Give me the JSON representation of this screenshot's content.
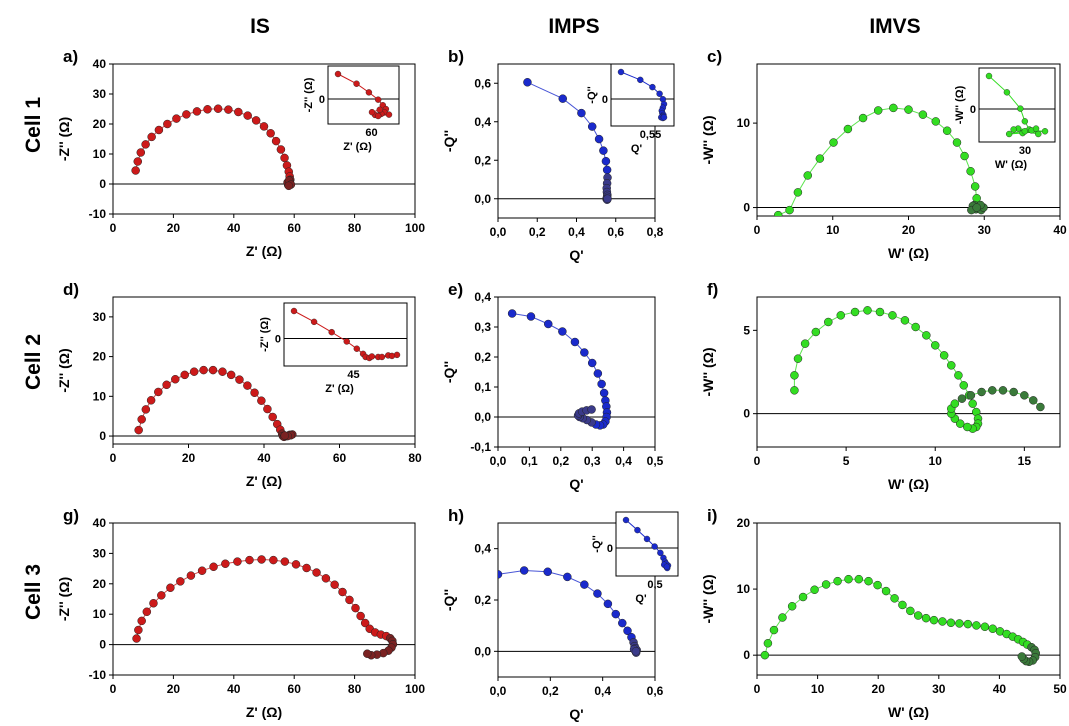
{
  "column_headers": [
    "IS",
    "IMPS",
    "IMVS"
  ],
  "row_headers": [
    "Cell 1",
    "Cell 2",
    "Cell 3"
  ],
  "colors": {
    "IS": "#cc1a1a",
    "IMPS": "#1a2acc",
    "IMVS": "#33dd22",
    "IS_dark": "#7a2222",
    "IMPS_dark": "#3a3a8a",
    "IMVS_dark": "#3a7a3a"
  },
  "chart_data": [
    {
      "id": "a",
      "label": "a)",
      "type": "scatter",
      "kind": "IS",
      "xlabel": "Z' (Ω)",
      "ylabel": "-Z'' (Ω)",
      "xlim": [
        0,
        100
      ],
      "ylim": [
        -10,
        40
      ],
      "xticks": [
        0,
        20,
        40,
        60,
        80,
        100
      ],
      "xtick_labels": [
        "0",
        "20",
        "40",
        "60",
        "80",
        "100"
      ],
      "yticks": [
        -10,
        0,
        10,
        20,
        30,
        40
      ],
      "ytick_labels": [
        "-10",
        "0",
        "10",
        "20",
        "30",
        "40"
      ],
      "x": [
        7.5,
        8.2,
        9.2,
        10.8,
        12.8,
        15.2,
        18,
        21,
        24.3,
        27.8,
        31.3,
        34.8,
        38.2,
        41.5,
        44.6,
        47.4,
        50,
        52.2,
        54,
        55.6,
        56.8,
        57.6,
        58.2,
        58.5,
        58.7,
        58.6,
        58.4,
        58.2,
        58,
        57.8,
        58.3,
        58.9,
        58.2
      ],
      "y": [
        4.5,
        7.5,
        10.5,
        13.2,
        15.7,
        18,
        20,
        21.8,
        23.2,
        24.2,
        24.9,
        25.1,
        24.8,
        24,
        22.8,
        21.2,
        19.2,
        16.9,
        14.3,
        11.5,
        8.7,
        6.2,
        4.1,
        2.5,
        1.4,
        0.5,
        0,
        -0.5,
        -0.3,
        0.5,
        1.2,
        -0.2,
        -0.6
      ],
      "inset": {
        "xlabel": "Z' (Ω)",
        "ylabel": "-Z'' (Ω)",
        "xtick_label": "60",
        "ytick_label": "0"
      }
    },
    {
      "id": "b",
      "label": "b)",
      "type": "scatter",
      "kind": "IMPS",
      "xlabel": "Q'",
      "ylabel": "-Q''",
      "xlim": [
        0,
        0.8
      ],
      "ylim": [
        -0.1,
        0.7
      ],
      "xticks": [
        0,
        0.2,
        0.4,
        0.6,
        0.8
      ],
      "xtick_labels": [
        "0,0",
        "0,2",
        "0,4",
        "0,6",
        "0,8"
      ],
      "yticks": [
        0,
        0.2,
        0.4,
        0.6
      ],
      "ytick_labels": [
        "0,0",
        "0,2",
        "0,4",
        "0,6"
      ],
      "x": [
        0.15,
        0.33,
        0.425,
        0.48,
        0.515,
        0.537,
        0.55,
        0.556,
        0.558,
        0.556,
        0.554,
        0.555,
        0.557,
        0.556,
        0.553,
        0.556,
        0.558
      ],
      "y": [
        0.605,
        0.52,
        0.445,
        0.375,
        0.31,
        0.25,
        0.195,
        0.15,
        0.11,
        0.08,
        0.055,
        0.035,
        0.02,
        0.01,
        0.0,
        -0.005,
        0.0
      ],
      "inset": {
        "xlabel": "Q'",
        "ylabel": "-Q''",
        "xtick_label": "0,55",
        "ytick_label": "0"
      }
    },
    {
      "id": "c",
      "label": "c)",
      "type": "scatter",
      "kind": "IMVS",
      "xlabel": "W' (Ω)",
      "ylabel": "-W'' (Ω)",
      "xlim": [
        0,
        40
      ],
      "ylim": [
        -1,
        17
      ],
      "xticks": [
        0,
        10,
        20,
        30,
        40
      ],
      "xtick_labels": [
        "0",
        "10",
        "20",
        "30",
        "40"
      ],
      "yticks": [
        0,
        10
      ],
      "ytick_labels": [
        "0",
        "10"
      ],
      "x": [
        2.8,
        4.3,
        5.4,
        6.7,
        8.3,
        10.1,
        12,
        14,
        16,
        18,
        20,
        21.9,
        23.6,
        25.1,
        26.4,
        27.4,
        28.2,
        28.8,
        29,
        29.2,
        28.9,
        28.7,
        29.3,
        29.6,
        28.5,
        29.9,
        28.3,
        29.5,
        29
      ],
      "y": [
        -0.9,
        -0.3,
        1.8,
        3.8,
        5.8,
        7.7,
        9.3,
        10.6,
        11.5,
        11.8,
        11.6,
        11,
        10.2,
        9.1,
        7.7,
        6.1,
        4.3,
        2.5,
        1.1,
        0.2,
        -0.2,
        0.3,
        0.1,
        -0.3,
        0.2,
        0,
        -0.3,
        0.3,
        0
      ],
      "inset": {
        "xlabel": "W' (Ω)",
        "ylabel": "-W'' (Ω)",
        "xtick_label": "30",
        "ytick_label": "0"
      }
    },
    {
      "id": "d",
      "label": "d)",
      "type": "scatter",
      "kind": "IS",
      "xlabel": "Z' (Ω)",
      "ylabel": "-Z'' (Ω)",
      "xlim": [
        0,
        80
      ],
      "ylim": [
        -2,
        35
      ],
      "xticks": [
        0,
        20,
        40,
        60,
        80
      ],
      "xtick_labels": [
        "0",
        "20",
        "40",
        "60",
        "80"
      ],
      "yticks": [
        0,
        10,
        20,
        30
      ],
      "ytick_labels": [
        "0",
        "10",
        "20",
        "30"
      ],
      "x": [
        6.8,
        7.6,
        8.7,
        10.1,
        12,
        14.2,
        16.5,
        19,
        21.5,
        24,
        26.5,
        29,
        31.3,
        33.5,
        35.6,
        37.5,
        39.3,
        40.9,
        42.3,
        43.5,
        44.3,
        44.8,
        45,
        45.3,
        46,
        46.8,
        47.5,
        47.1,
        46.3,
        45.5
      ],
      "y": [
        1.5,
        4.2,
        6.7,
        9,
        11.1,
        12.9,
        14.3,
        15.4,
        16.2,
        16.6,
        16.6,
        16.2,
        15.4,
        14.2,
        12.7,
        10.9,
        8.9,
        6.8,
        4.8,
        3,
        1.6,
        0.6,
        0,
        -0.2,
        0,
        0.3,
        0.4,
        0.2,
        0,
        0.1
      ],
      "inset": {
        "xlabel": "Z' (Ω)",
        "ylabel": "-Z'' (Ω)",
        "xtick_label": "45",
        "ytick_label": "0"
      }
    },
    {
      "id": "e",
      "label": "e)",
      "type": "scatter",
      "kind": "IMPS",
      "xlabel": "Q'",
      "ylabel": "-Q''",
      "xlim": [
        0,
        0.5
      ],
      "ylim": [
        -0.1,
        0.4
      ],
      "xticks": [
        0,
        0.1,
        0.2,
        0.3,
        0.4,
        0.5
      ],
      "xtick_labels": [
        "0,0",
        "0,1",
        "0,2",
        "0,3",
        "0,4",
        "0,5"
      ],
      "yticks": [
        -0.1,
        0,
        0.1,
        0.2,
        0.3,
        0.4
      ],
      "ytick_labels": [
        "-0,1",
        "0,0",
        "0,1",
        "0,2",
        "0,3",
        "0,4"
      ],
      "x": [
        0.045,
        0.105,
        0.16,
        0.205,
        0.245,
        0.275,
        0.3,
        0.318,
        0.33,
        0.338,
        0.342,
        0.345,
        0.347,
        0.346,
        0.342,
        0.335,
        0.325,
        0.312,
        0.298,
        0.283,
        0.27,
        0.26,
        0.255,
        0.258,
        0.268,
        0.282,
        0.298
      ],
      "y": [
        0.345,
        0.335,
        0.31,
        0.285,
        0.25,
        0.215,
        0.18,
        0.145,
        0.11,
        0.08,
        0.055,
        0.035,
        0.015,
        0.0,
        -0.015,
        -0.025,
        -0.028,
        -0.025,
        -0.018,
        -0.01,
        -0.004,
        0.0,
        0.005,
        0.012,
        0.018,
        0.022,
        0.025
      ]
    },
    {
      "id": "f",
      "label": "f)",
      "type": "scatter",
      "kind": "IMVS",
      "xlabel": "W' (Ω)",
      "ylabel": "-W'' (Ω)",
      "xlim": [
        0,
        17
      ],
      "ylim": [
        -2,
        7
      ],
      "xticks": [
        0,
        5,
        10,
        15
      ],
      "xtick_labels": [
        "0",
        "5",
        "10",
        "15"
      ],
      "yticks": [
        0,
        5
      ],
      "ytick_labels": [
        "0",
        "5"
      ],
      "x": [
        2.1,
        2.1,
        2.3,
        2.7,
        3.3,
        4,
        4.7,
        5.5,
        6.2,
        6.9,
        7.6,
        8.3,
        8.9,
        9.5,
        10,
        10.5,
        10.9,
        11.3,
        11.6,
        11.9,
        12.1,
        12.3,
        12.4,
        12.4,
        12.3,
        12.1,
        11.8,
        11.4,
        11.1,
        10.9,
        10.9,
        11.1,
        11.5,
        12,
        12.6,
        13.2,
        13.8,
        14.4,
        15,
        15.5,
        15.9
      ],
      "y": [
        1.4,
        2.3,
        3.3,
        4.2,
        4.9,
        5.5,
        5.9,
        6.1,
        6.2,
        6.1,
        5.9,
        5.6,
        5.2,
        4.7,
        4.1,
        3.5,
        2.9,
        2.3,
        1.7,
        1.1,
        0.6,
        0.1,
        -0.3,
        -0.6,
        -0.8,
        -0.9,
        -0.8,
        -0.6,
        -0.3,
        0,
        0.3,
        0.6,
        0.9,
        1.1,
        1.3,
        1.4,
        1.4,
        1.3,
        1.1,
        0.8,
        0.4
      ]
    },
    {
      "id": "g",
      "label": "g)",
      "type": "scatter",
      "kind": "IS",
      "xlabel": "Z' (Ω)",
      "ylabel": "-Z'' (Ω)",
      "xlim": [
        0,
        100
      ],
      "ylim": [
        -10,
        40
      ],
      "xticks": [
        0,
        20,
        40,
        60,
        80,
        100
      ],
      "xtick_labels": [
        "0",
        "20",
        "40",
        "60",
        "80",
        "100"
      ],
      "yticks": [
        -10,
        0,
        10,
        20,
        30,
        40
      ],
      "ytick_labels": [
        "-10",
        "0",
        "10",
        "20",
        "30",
        "40"
      ],
      "x": [
        7.8,
        8.4,
        9.5,
        11.2,
        13.4,
        16,
        19,
        22.3,
        25.8,
        29.5,
        33.3,
        37.2,
        41.2,
        45.2,
        49.2,
        53.1,
        56.9,
        60.6,
        64.1,
        67.4,
        70.5,
        73.4,
        76,
        78.3,
        80.3,
        82,
        83.5,
        85,
        86.8,
        88.7,
        90.5,
        91.8,
        92.5,
        92.7,
        92.2,
        91.2,
        89.5,
        87.4,
        85.5,
        84.2
      ],
      "y": [
        2,
        4.8,
        7.8,
        10.8,
        13.6,
        16.2,
        18.7,
        20.8,
        22.7,
        24.3,
        25.6,
        26.6,
        27.3,
        27.8,
        28,
        27.8,
        27.3,
        26.4,
        25.2,
        23.7,
        21.8,
        19.7,
        17.3,
        14.7,
        12,
        9.4,
        7.1,
        5.2,
        4,
        3.3,
        2.8,
        2.1,
        1.2,
        0.1,
        -1,
        -2,
        -2.8,
        -3.3,
        -3.5,
        -3
      ]
    },
    {
      "id": "h",
      "label": "h)",
      "type": "scatter",
      "kind": "IMPS",
      "xlabel": "Q'",
      "ylabel": "-Q''",
      "xlim": [
        0,
        0.6
      ],
      "ylim": [
        -0.1,
        0.5
      ],
      "xticks": [
        0,
        0.2,
        0.4,
        0.6
      ],
      "xtick_labels": [
        "0,0",
        "0,2",
        "0,4",
        "0,6"
      ],
      "yticks": [
        0,
        0.2,
        0.4
      ],
      "ytick_labels": [
        "0,0",
        "0,2",
        "0,4"
      ],
      "x": [
        0.0,
        0.1,
        0.19,
        0.265,
        0.33,
        0.38,
        0.42,
        0.45,
        0.475,
        0.495,
        0.51,
        0.518,
        0.522,
        0.524,
        0.526,
        0.528,
        0.53,
        0.525,
        0.52,
        0.527
      ],
      "y": [
        0.3,
        0.315,
        0.31,
        0.29,
        0.26,
        0.225,
        0.185,
        0.145,
        0.11,
        0.08,
        0.055,
        0.035,
        0.02,
        0.01,
        0.0,
        -0.005,
        0.005,
        0.012,
        0.008,
        0.0
      ],
      "inset": {
        "xlabel": "Q'",
        "ylabel": "-Q''",
        "xtick_label": "0,5",
        "ytick_label": "0"
      }
    },
    {
      "id": "i",
      "label": "i)",
      "type": "scatter",
      "kind": "IMVS",
      "xlabel": "W' (Ω)",
      "ylabel": "-W'' (Ω)",
      "xlim": [
        0,
        50
      ],
      "ylim": [
        -3,
        20
      ],
      "xticks": [
        0,
        10,
        20,
        30,
        40,
        50
      ],
      "xtick_labels": [
        "0",
        "10",
        "20",
        "30",
        "40",
        "50"
      ],
      "yticks": [
        0,
        10,
        20
      ],
      "ytick_labels": [
        "0",
        "10",
        "20"
      ],
      "x": [
        1.3,
        1.8,
        2.8,
        4.2,
        5.8,
        7.6,
        9.5,
        11.4,
        13.3,
        15.1,
        16.8,
        18.4,
        19.9,
        21.3,
        22.7,
        24,
        25.3,
        26.6,
        27.9,
        29.2,
        30.6,
        32,
        33.4,
        34.8,
        36.2,
        37.6,
        38.9,
        40.1,
        41.2,
        42.2,
        43.1,
        43.9,
        44.6,
        45.3,
        45.8,
        46,
        45.9,
        45.5,
        44.9,
        44.4,
        44,
        43.7
      ],
      "y": [
        0,
        1.8,
        3.8,
        5.7,
        7.4,
        8.8,
        9.9,
        10.7,
        11.2,
        11.5,
        11.5,
        11.2,
        10.6,
        9.7,
        8.6,
        7.6,
        6.7,
        6,
        5.6,
        5.3,
        5.1,
        4.9,
        4.8,
        4.7,
        4.5,
        4.3,
        4,
        3.6,
        3.2,
        2.8,
        2.4,
        2,
        1.6,
        1.2,
        0.8,
        0.3,
        -0.3,
        -0.8,
        -1,
        -0.9,
        -0.6,
        -0.2
      ]
    }
  ]
}
